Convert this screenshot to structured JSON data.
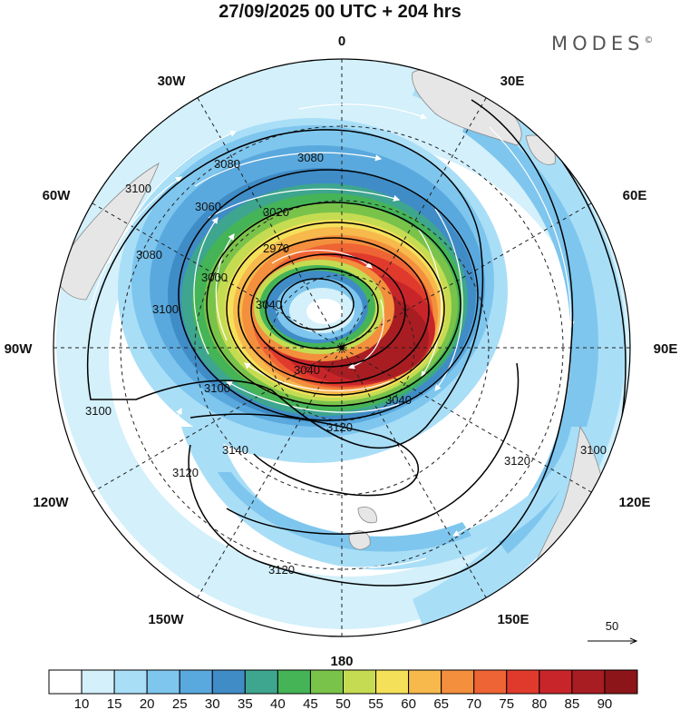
{
  "header": {
    "title": "27/09/2025  00 UTC  + 204 hrs",
    "brand": "MODES",
    "brand_mark": "©"
  },
  "map": {
    "projection": "polar-stereographic",
    "hemisphere": "south",
    "longitude_labels": [
      "0",
      "30E",
      "60E",
      "90E",
      "120E",
      "150E",
      "180",
      "150W",
      "120W",
      "90W",
      "60W",
      "30W"
    ],
    "contour_labels": [
      "3080",
      "3080",
      "3100",
      "3080",
      "3060",
      "3020",
      "2970",
      "3000",
      "3040",
      "3100",
      "3040",
      "3040",
      "3100",
      "3120",
      "3100",
      "3140",
      "3120",
      "3120",
      "3120",
      "3100"
    ],
    "reference_vector": {
      "label": "50"
    },
    "colors": {
      "contour": "#000000",
      "grid": "#222222",
      "vectors": "#ffffff",
      "land": "#e6e6e6",
      "coast": "#888888"
    }
  },
  "colorbar": {
    "ticks": [
      "10",
      "15",
      "20",
      "25",
      "30",
      "35",
      "40",
      "45",
      "50",
      "55",
      "60",
      "65",
      "70",
      "75",
      "80",
      "85",
      "90"
    ],
    "colors": [
      "#ffffff",
      "#d3f0fb",
      "#a9def7",
      "#7ec6ee",
      "#5aa9de",
      "#3f8cc7",
      "#3ea58e",
      "#45b457",
      "#7ac34b",
      "#c5dc52",
      "#f5e05a",
      "#f7b84c",
      "#f38f3d",
      "#ef6434",
      "#e03a2d",
      "#c8252a",
      "#a81d22",
      "#8b1519"
    ]
  }
}
